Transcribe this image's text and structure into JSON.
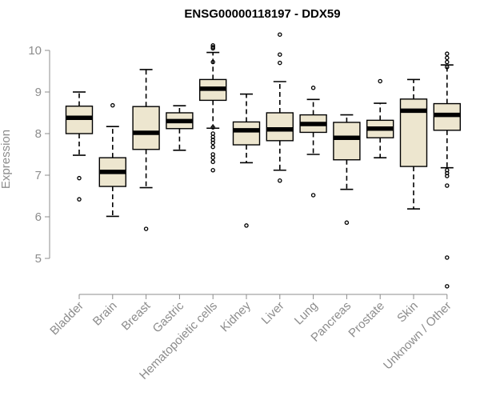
{
  "chart_data": {
    "type": "box",
    "title": "ENSG00000118197 - DDX59",
    "ylabel": "Expression",
    "xlabel": "",
    "ylim": [
      4.2,
      10.5
    ],
    "yticks": [
      5,
      6,
      7,
      8,
      9,
      10
    ],
    "box_fill": "#ede6cf",
    "box_stroke": "#000000",
    "median_color": "#000000",
    "axis_color": "#8c8c8c",
    "categories": [
      "Bladder",
      "Brain",
      "Breast",
      "Gastric",
      "Hematopoietic cells",
      "Kidney",
      "Liver",
      "Lung",
      "Pancreas",
      "Prostate",
      "Skin",
      "Unknown / Other"
    ],
    "boxes": [
      {
        "category": "Bladder",
        "whisker_low": 7.48,
        "q1": 8.0,
        "median": 8.38,
        "q3": 8.66,
        "whisker_high": 9.0,
        "outliers": [
          6.93,
          6.42
        ]
      },
      {
        "category": "Brain",
        "whisker_low": 6.01,
        "q1": 6.73,
        "median": 7.08,
        "q3": 7.42,
        "whisker_high": 8.17,
        "outliers": [
          8.68
        ]
      },
      {
        "category": "Breast",
        "whisker_low": 6.7,
        "q1": 7.62,
        "median": 8.02,
        "q3": 8.65,
        "whisker_high": 9.54,
        "outliers": [
          5.71
        ]
      },
      {
        "category": "Gastric",
        "whisker_low": 7.6,
        "q1": 8.12,
        "median": 8.3,
        "q3": 8.5,
        "whisker_high": 8.67,
        "outliers": []
      },
      {
        "category": "Hematopoietic cells",
        "whisker_low": 8.13,
        "q1": 8.8,
        "median": 9.08,
        "q3": 9.3,
        "whisker_high": 9.95,
        "outliers": [
          10.12,
          10.08,
          10.05,
          9.72,
          8.15,
          8.0,
          7.92,
          7.85,
          7.78,
          7.68,
          7.5,
          7.42,
          7.32,
          7.12
        ]
      },
      {
        "category": "Kidney",
        "whisker_low": 7.3,
        "q1": 7.73,
        "median": 8.08,
        "q3": 8.28,
        "whisker_high": 8.95,
        "outliers": [
          5.79
        ]
      },
      {
        "category": "Liver",
        "whisker_low": 7.12,
        "q1": 7.83,
        "median": 8.1,
        "q3": 8.5,
        "whisker_high": 9.25,
        "outliers": [
          10.38,
          9.9,
          9.7,
          6.87
        ]
      },
      {
        "category": "Lung",
        "whisker_low": 7.5,
        "q1": 8.03,
        "median": 8.23,
        "q3": 8.45,
        "whisker_high": 8.82,
        "outliers": [
          9.1,
          6.52
        ]
      },
      {
        "category": "Pancreas",
        "whisker_low": 6.66,
        "q1": 7.37,
        "median": 7.9,
        "q3": 8.27,
        "whisker_high": 8.45,
        "outliers": [
          5.86
        ]
      },
      {
        "category": "Prostate",
        "whisker_low": 7.42,
        "q1": 7.9,
        "median": 8.12,
        "q3": 8.32,
        "whisker_high": 8.73,
        "outliers": [
          9.26
        ]
      },
      {
        "category": "Skin",
        "whisker_low": 6.19,
        "q1": 7.21,
        "median": 8.55,
        "q3": 8.83,
        "whisker_high": 9.3,
        "outliers": []
      },
      {
        "category": "Unknown / Other",
        "whisker_low": 7.18,
        "q1": 8.08,
        "median": 8.45,
        "q3": 8.72,
        "whisker_high": 9.65,
        "outliers": [
          9.92,
          9.82,
          9.72,
          9.6,
          7.12,
          7.05,
          6.98,
          6.75,
          5.02,
          4.33
        ]
      }
    ]
  }
}
